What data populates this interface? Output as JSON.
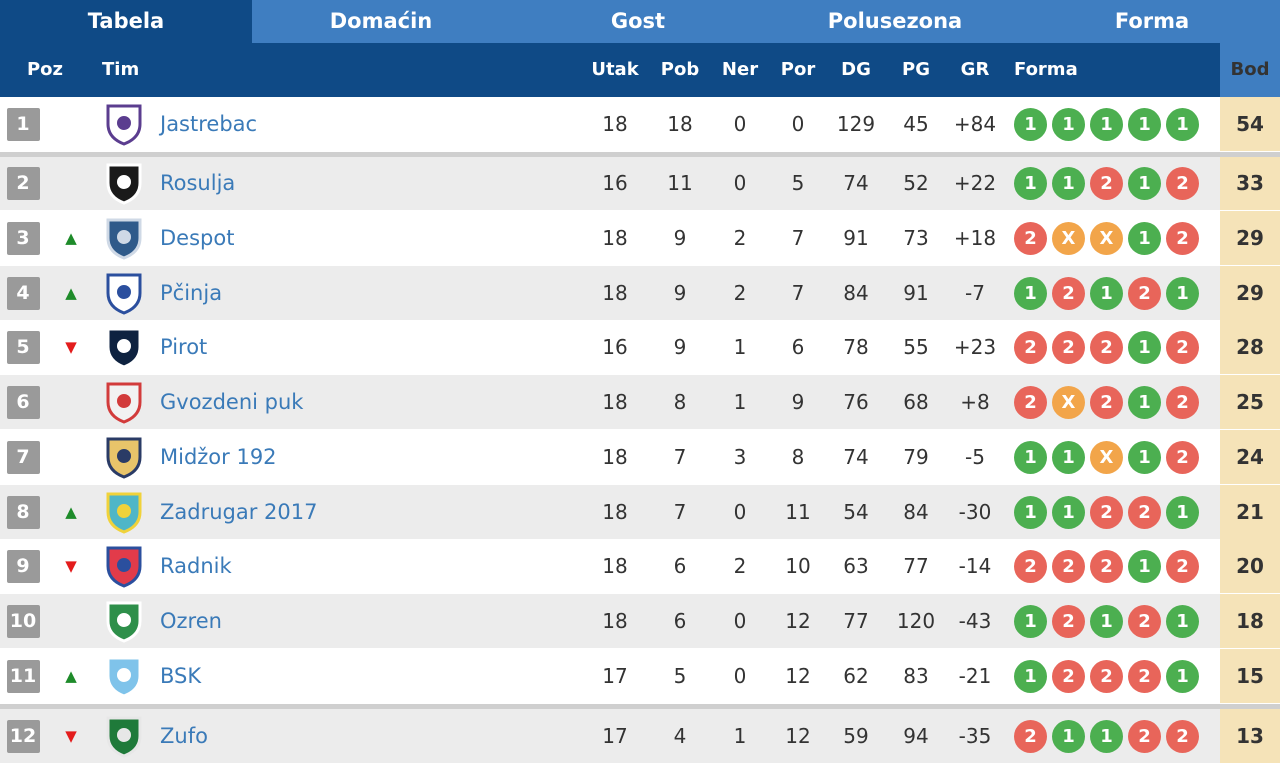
{
  "tabs": [
    "Tabela",
    "Domaćin",
    "Gost",
    "Polusezona",
    "Forma"
  ],
  "headers": {
    "poz": "Poz",
    "tim": "Tim",
    "utak": "Utak",
    "pob": "Pob",
    "ner": "Ner",
    "por": "Por",
    "dg": "DG",
    "pg": "PG",
    "gr": "GR",
    "forma": "Forma",
    "bod": "Bod"
  },
  "colors": {
    "tab_bar": "#3f7ec1",
    "header_bar": "#0f4a86",
    "points_column": "#f5e3b8",
    "win": "#4caf50",
    "loss": "#e8655a",
    "draw": "#f2a54a",
    "trend_up": "#1e8b2a",
    "trend_down": "#e31c1c",
    "team_link": "#3a7ab8"
  },
  "rows": [
    {
      "pos": "1",
      "trend": "",
      "team": "Jastrebac",
      "logo": "crest-purple-white-icon",
      "utak": "18",
      "pob": "18",
      "ner": "0",
      "por": "0",
      "dg": "129",
      "pg": "45",
      "gr": "+84",
      "form": [
        "1",
        "1",
        "1",
        "1",
        "1"
      ],
      "bod": "54"
    },
    {
      "pos": "2",
      "trend": "",
      "team": "Rosulja",
      "logo": "crest-black-white-stripes-icon",
      "utak": "16",
      "pob": "11",
      "ner": "0",
      "por": "5",
      "dg": "74",
      "pg": "52",
      "gr": "+22",
      "form": [
        "1",
        "1",
        "2",
        "1",
        "2"
      ],
      "bod": "33"
    },
    {
      "pos": "3",
      "trend": "▲",
      "team": "Despot",
      "logo": "crest-blue-round-icon",
      "utak": "18",
      "pob": "9",
      "ner": "2",
      "por": "7",
      "dg": "91",
      "pg": "73",
      "gr": "+18",
      "form": [
        "2",
        "X",
        "X",
        "1",
        "2"
      ],
      "bod": "29"
    },
    {
      "pos": "4",
      "trend": "▲",
      "team": "Pčinja",
      "logo": "crest-ball-blue-icon",
      "utak": "18",
      "pob": "9",
      "ner": "2",
      "por": "7",
      "dg": "84",
      "pg": "91",
      "gr": "-7",
      "form": [
        "1",
        "2",
        "1",
        "2",
        "1"
      ],
      "bod": "29"
    },
    {
      "pos": "5",
      "trend": "▼",
      "team": "Pirot",
      "logo": "crest-dark-navy-icon",
      "utak": "16",
      "pob": "9",
      "ner": "1",
      "por": "6",
      "dg": "78",
      "pg": "55",
      "gr": "+23",
      "form": [
        "2",
        "2",
        "2",
        "1",
        "2"
      ],
      "bod": "28"
    },
    {
      "pos": "6",
      "trend": "",
      "team": "Gvozdeni puk",
      "logo": "crest-red-white-cross-icon",
      "utak": "18",
      "pob": "8",
      "ner": "1",
      "por": "9",
      "dg": "76",
      "pg": "68",
      "gr": "+8",
      "form": [
        "2",
        "X",
        "2",
        "1",
        "2"
      ],
      "bod": "25"
    },
    {
      "pos": "7",
      "trend": "",
      "team": "Midžor 192",
      "logo": "crest-gold-wings-icon",
      "utak": "18",
      "pob": "7",
      "ner": "3",
      "por": "8",
      "dg": "74",
      "pg": "79",
      "gr": "-5",
      "form": [
        "1",
        "1",
        "X",
        "1",
        "2"
      ],
      "bod": "24"
    },
    {
      "pos": "8",
      "trend": "▲",
      "team": "Zadrugar 2017",
      "logo": "crest-teal-yellow-icon",
      "utak": "18",
      "pob": "7",
      "ner": "0",
      "por": "11",
      "dg": "54",
      "pg": "84",
      "gr": "-30",
      "form": [
        "1",
        "1",
        "2",
        "2",
        "1"
      ],
      "bod": "21"
    },
    {
      "pos": "9",
      "trend": "▼",
      "team": "Radnik",
      "logo": "crest-red-blue-shield-icon",
      "utak": "18",
      "pob": "6",
      "ner": "2",
      "por": "10",
      "dg": "63",
      "pg": "77",
      "gr": "-14",
      "form": [
        "2",
        "2",
        "2",
        "1",
        "2"
      ],
      "bod": "20"
    },
    {
      "pos": "10",
      "trend": "",
      "team": "Ozren",
      "logo": "crest-green-white-icon",
      "utak": "18",
      "pob": "6",
      "ner": "0",
      "por": "12",
      "dg": "77",
      "pg": "120",
      "gr": "-43",
      "form": [
        "1",
        "2",
        "1",
        "2",
        "1"
      ],
      "bod": "18"
    },
    {
      "pos": "11",
      "trend": "▲",
      "team": "BSK",
      "logo": "crest-light-blue-ball-icon",
      "utak": "17",
      "pob": "5",
      "ner": "0",
      "por": "12",
      "dg": "62",
      "pg": "83",
      "gr": "-21",
      "form": [
        "1",
        "2",
        "2",
        "2",
        "1"
      ],
      "bod": "15"
    },
    {
      "pos": "12",
      "trend": "▼",
      "team": "Zufo",
      "logo": "crest-green-oval-icon",
      "utak": "17",
      "pob": "4",
      "ner": "1",
      "por": "12",
      "dg": "59",
      "pg": "94",
      "gr": "-35",
      "form": [
        "2",
        "1",
        "1",
        "2",
        "2"
      ],
      "bod": "13"
    }
  ]
}
